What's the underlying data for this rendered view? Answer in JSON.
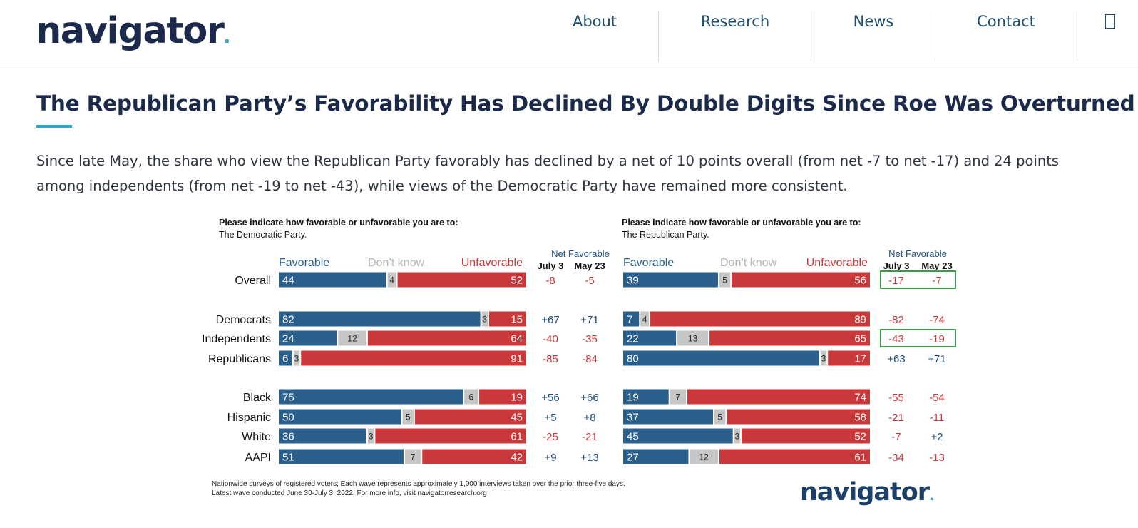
{
  "header": {
    "logo": "navigator",
    "logo_dot": ".",
    "nav": [
      "About",
      "Research",
      "News",
      "Contact"
    ]
  },
  "article": {
    "title": "The Republican Party’s Favorability Has Declined By Double Digits Since Roe Was Overturned",
    "intro": "Since late May, the share who view the Republican Party favorably has declined by a net of 10 points overall (from net -7 to net -17) and 24 points among independents (from net -19 to net -43), while views of the Democratic Party have remained more consistent."
  },
  "colors": {
    "favorable": "#2b5f8c",
    "dont_know": "#c6c6c6",
    "unfavorable": "#c9383a",
    "highlight_box": "#3f9a4b",
    "net_positive": "#1f4f7e",
    "net_negative": "#c9383a"
  },
  "chart_data": [
    {
      "type": "bar",
      "stacked": true,
      "orientation": "horizontal",
      "question": "Please indicate how favorable or unfavorable you are to:",
      "subject": "The Democratic Party.",
      "legend": [
        "Favorable",
        "Don’t know",
        "Unfavorable"
      ],
      "net_header": "Net Favorable",
      "net_columns": [
        "July 3",
        "May 23"
      ],
      "categories": [
        "Overall",
        "Democrats",
        "Independents",
        "Republicans",
        "Black",
        "Hispanic",
        "White",
        "AAPI"
      ],
      "series": [
        {
          "name": "Favorable",
          "values": [
            44,
            82,
            24,
            6,
            75,
            50,
            36,
            51
          ]
        },
        {
          "name": "Don’t know",
          "values": [
            4,
            3,
            12,
            3,
            6,
            5,
            3,
            7
          ]
        },
        {
          "name": "Unfavorable",
          "values": [
            52,
            15,
            64,
            91,
            19,
            45,
            61,
            42
          ]
        }
      ],
      "net_favorable": {
        "July 3": [
          "-8",
          "+67",
          "-40",
          "-85",
          "+56",
          "+5",
          "-25",
          "+9"
        ],
        "May 23": [
          "-5",
          "+71",
          "-35",
          "-84",
          "+66",
          "+8",
          "-21",
          "+13"
        ]
      },
      "highlighted_rows": []
    },
    {
      "type": "bar",
      "stacked": true,
      "orientation": "horizontal",
      "question": "Please indicate how favorable or unfavorable you are to:",
      "subject": "The Republican Party.",
      "legend": [
        "Favorable",
        "Don’t know",
        "Unfavorable"
      ],
      "net_header": "Net Favorable",
      "net_columns": [
        "July 3",
        "May 23"
      ],
      "categories": [
        "Overall",
        "Democrats",
        "Independents",
        "Republicans",
        "Black",
        "Hispanic",
        "White",
        "AAPI"
      ],
      "series": [
        {
          "name": "Favorable",
          "values": [
            39,
            7,
            22,
            80,
            19,
            37,
            45,
            27
          ]
        },
        {
          "name": "Don’t know",
          "values": [
            5,
            4,
            13,
            3,
            7,
            5,
            3,
            12
          ]
        },
        {
          "name": "Unfavorable",
          "values": [
            56,
            89,
            65,
            17,
            74,
            58,
            52,
            61
          ]
        }
      ],
      "net_favorable": {
        "July 3": [
          "-17",
          "-82",
          "-43",
          "+63",
          "-55",
          "-21",
          "-7",
          "-34"
        ],
        "May 23": [
          "-7",
          "-74",
          "-19",
          "+71",
          "-54",
          "-11",
          "+2",
          "-13"
        ]
      },
      "highlighted_rows": [
        "Overall",
        "Independents"
      ]
    }
  ],
  "footnote": [
    "Nationwide surveys of registered voters; Each wave represents approximately 1,000 interviews taken over the prior three-five days.",
    "Latest wave conducted June 30-July 3, 2022. For more info, visit navigatorresearch.org"
  ],
  "chart_logo": "navigator"
}
